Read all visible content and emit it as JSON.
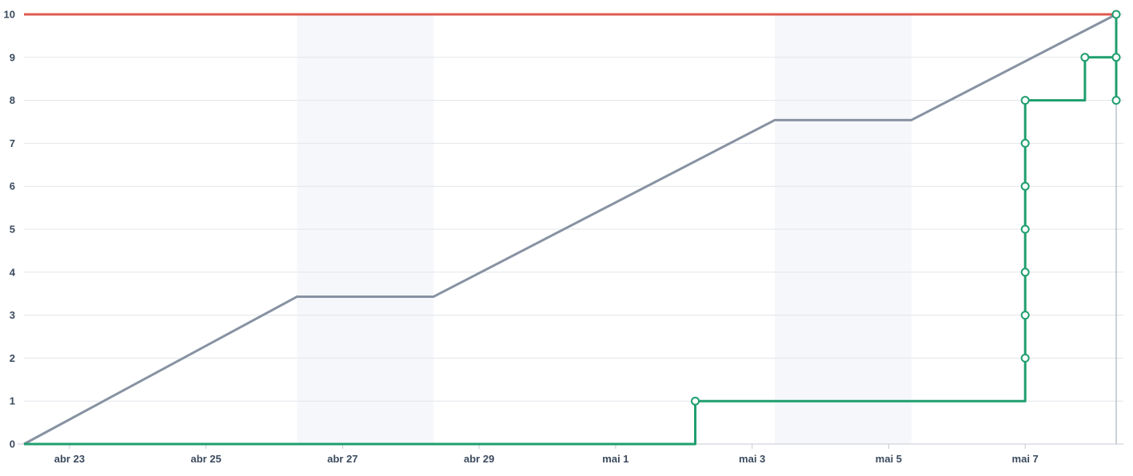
{
  "chart_data": {
    "type": "line",
    "title": "",
    "xlabel": "",
    "ylabel": "",
    "x_range": [
      "2025-04-22",
      "2025-05-08"
    ],
    "ylim": [
      0,
      10
    ],
    "y_ticks": [
      "0",
      "1",
      "2",
      "3",
      "4",
      "5",
      "6",
      "7",
      "8",
      "9",
      "10"
    ],
    "x_ticks": [
      {
        "date": "2025-04-23",
        "label": "abr 23"
      },
      {
        "date": "2025-04-25",
        "label": "abr 25"
      },
      {
        "date": "2025-04-27",
        "label": "abr 27"
      },
      {
        "date": "2025-04-29",
        "label": "abr 29"
      },
      {
        "date": "2025-05-01",
        "label": "mai 1"
      },
      {
        "date": "2025-05-03",
        "label": "mai 3"
      },
      {
        "date": "2025-05-05",
        "label": "mai 5"
      },
      {
        "date": "2025-05-07",
        "label": "mai 7"
      }
    ],
    "grid": true,
    "legend": "none",
    "weekend_bands": [
      {
        "start": "2025-04-26 20:00",
        "end": "2025-04-28 20:00"
      },
      {
        "start": "2025-05-03 20:00",
        "end": "2025-05-05 20:00"
      }
    ],
    "series": [
      {
        "role": "target",
        "color": "#e05a4f",
        "points": [
          {
            "x": "2025-04-22 20:00",
            "y": 10
          },
          {
            "x": "2025-05-08 20:00",
            "y": 10
          }
        ]
      },
      {
        "role": "ideal",
        "color": "#8792a2",
        "points": [
          {
            "x": "2025-04-22 20:00",
            "y": 0
          },
          {
            "x": "2025-04-26 20:00",
            "y": 3.43
          },
          {
            "x": "2025-04-28 20:00",
            "y": 3.43
          },
          {
            "x": "2025-05-03 20:00",
            "y": 7.54
          },
          {
            "x": "2025-05-05 20:00",
            "y": 7.54
          },
          {
            "x": "2025-05-08 20:00",
            "y": 10
          }
        ]
      },
      {
        "role": "actual",
        "color": "#1f9e6f",
        "step": true,
        "points": [
          {
            "x": "2025-04-22 20:00",
            "y": 0
          },
          {
            "x": "2025-05-02 16:00",
            "y": 1
          },
          {
            "x": "2025-05-07 12:00",
            "y": 2
          },
          {
            "x": "2025-05-07 12:00",
            "y": 3
          },
          {
            "x": "2025-05-07 12:00",
            "y": 4
          },
          {
            "x": "2025-05-07 12:00",
            "y": 5
          },
          {
            "x": "2025-05-07 12:00",
            "y": 6
          },
          {
            "x": "2025-05-07 12:00",
            "y": 7
          },
          {
            "x": "2025-05-07 12:00",
            "y": 8
          },
          {
            "x": "2025-05-08 09:00",
            "y": 9
          },
          {
            "x": "2025-05-08 20:00",
            "y": 9
          },
          {
            "x": "2025-05-08 20:00",
            "y": 8
          },
          {
            "x": "2025-05-08 20:00",
            "y": 10
          }
        ]
      }
    ],
    "cursor": {
      "x": "2025-05-08 20:00"
    }
  }
}
